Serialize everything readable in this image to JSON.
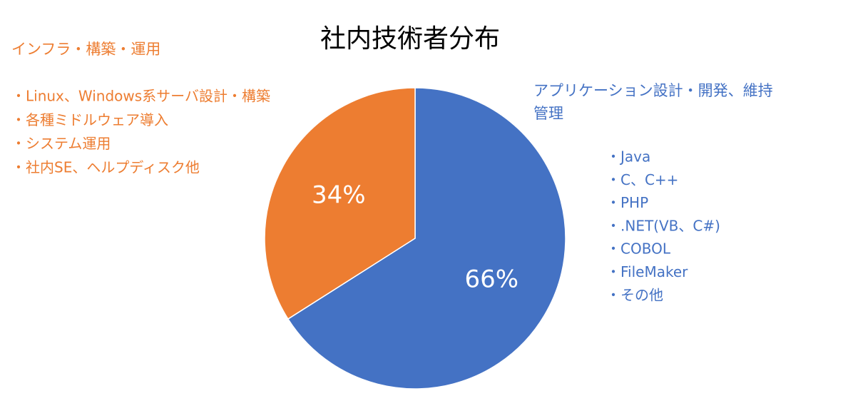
{
  "chart_data": {
    "type": "pie",
    "title": "社内技術者分布",
    "values": [
      66,
      34
    ],
    "value_labels": [
      "66%",
      "34%"
    ],
    "colors": [
      "#4472c4",
      "#ed7d31"
    ],
    "annotations": [
      {
        "color": "#4472c4",
        "heading": [
          "アプリケーション設計・開発、維持",
          "管理"
        ],
        "items": [
          "・Java",
          "・C、C++",
          "・PHP",
          "・.NET(VB、C#)",
          "・COBOL",
          "・FileMaker",
          "・その他"
        ]
      },
      {
        "color": "#ed7d31",
        "heading": [
          "インフラ・構築・運用"
        ],
        "items": [
          "・Linux、Windows系サーバ設計・構築",
          "・各種ミドルウェア導入",
          "・システム運用",
          "・社内SE、ヘルプディスク他"
        ]
      }
    ]
  }
}
